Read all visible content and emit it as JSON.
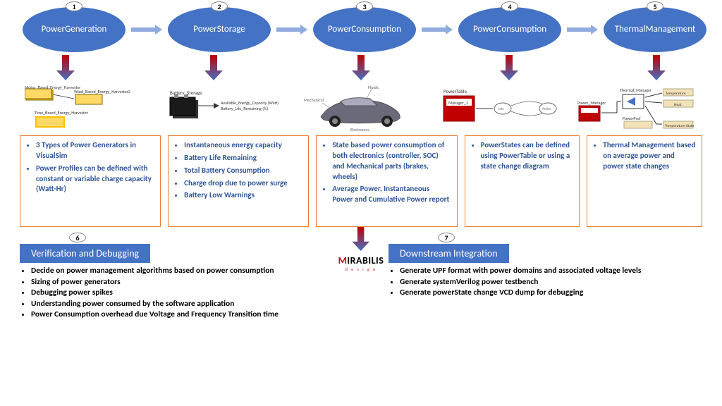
{
  "colors": {
    "ellipse_fill": "#4472c4",
    "ellipse_text": "#ffffff",
    "h_arrow": "#8faadc",
    "grad_top": "#c00000",
    "grad_bottom": "#4472c4",
    "desc_border": "#ed7d31",
    "desc_text": "#2f5597",
    "section_title_bg": "#4472c4",
    "bottom_text": "#000000"
  },
  "stages": [
    {
      "num": "1",
      "label": "Power\nGeneration"
    },
    {
      "num": "2",
      "label": "Power\nStorage"
    },
    {
      "num": "3",
      "label": "Power\nConsumption"
    },
    {
      "num": "4",
      "label": "Power\nConsumption"
    },
    {
      "num": "5",
      "label": "Thermal\nManagement"
    }
  ],
  "icon_labels": {
    "s1a": "Motor_Based_Energy_Harvester",
    "s1b": "Wind_Based_Energy_Harvester2",
    "s1c": "Time_Based_Energy_Harvester",
    "s2a": "Battery_Storage",
    "s2b": "Available_Energy_Capacity (Watt)\nBattery_Life_Remaining (%)",
    "s3a": "Fluidic",
    "s3b": "Mechanical",
    "s3c": "Electronics",
    "s4a": "PowerTable",
    "s4b": "Manager_1",
    "s5a": "Power_Manager",
    "s5b": "Thermal_Manager",
    "s5c": "Temperature",
    "s5d": "Heat",
    "s5e": "PowerProf",
    "s5f": "Temperature State"
  },
  "descriptions": [
    [
      "3 Types of Power Generators in VisualSim",
      "Power Profiles can be defined with constant or variable charge capacity (Watt-Hr)"
    ],
    [
      "Instantaneous energy capacity",
      "Battery Life Remaining",
      "Total Battery Consumption",
      "Charge drop due to power surge",
      "Battery Low Warnings"
    ],
    [
      "State based power consumption of both electronics (controller, SOC) and Mechanical parts (brakes, wheels)",
      "Average Power, Instantaneous Power and Cumulative Power report"
    ],
    [
      "PowerStates can be defined using PowerTable or using a state change diagram"
    ],
    [
      "Thermal Management based on average power and power state changes"
    ]
  ],
  "bottom": {
    "left": {
      "num": "6",
      "title": "Verification and Debugging",
      "items": [
        "Decide on power management algorithms based on power consumption",
        "Sizing of power generators",
        "Debugging power spikes",
        "Understanding power consumed by the software application",
        "Power Consumption overhead due Voltage and Frequency Transition time"
      ]
    },
    "right": {
      "num": "7",
      "title": "Downstream Integration",
      "items": [
        "Generate UPF format with power domains and associated voltage levels",
        "Generate systemVerilog power testbench",
        "Generate powerState change VCD dump for debugging"
      ]
    }
  },
  "logo": {
    "main": "MIRABILIS",
    "sub": "d e s i g n"
  }
}
